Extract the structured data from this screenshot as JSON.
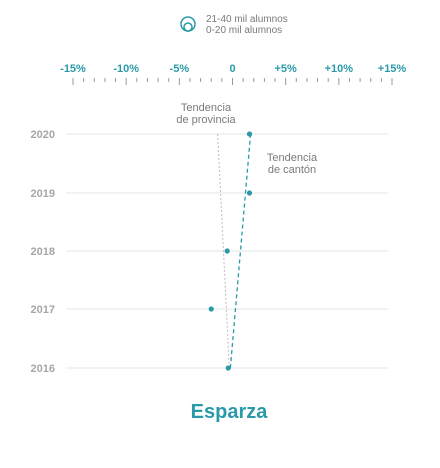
{
  "legend": {
    "size_large": "21-40 mil alumnos",
    "size_small": "0-20 mil alumnos"
  },
  "colors": {
    "accent": "#2a9aa8",
    "grid": "#e6e6e6",
    "year_text": "#a6a6a6",
    "annotation_text": "#7a7a7a",
    "province_line": "#bdbdbd"
  },
  "chart_data": {
    "type": "scatter",
    "title": "Esparza",
    "xlim": [
      -15,
      15
    ],
    "x_ticks": [
      -15,
      -10,
      -5,
      0,
      5,
      10,
      15
    ],
    "x_tick_labels": [
      "-15%",
      "-10%",
      "-5%",
      "0",
      "+5%",
      "+10%",
      "+15%"
    ],
    "years": [
      "2020",
      "2019",
      "2018",
      "2017",
      "2016"
    ],
    "points": [
      {
        "year": "2020",
        "x": 1.6
      },
      {
        "year": "2019",
        "x": 1.6
      },
      {
        "year": "2018",
        "x": -0.5
      },
      {
        "year": "2017",
        "x": -2.0
      },
      {
        "year": "2016",
        "x": -0.4
      }
    ],
    "canton_trend": {
      "label": "Tendencia\nde cantón",
      "x_start": -0.2,
      "x_end": 1.7
    },
    "province_trend": {
      "label": "Tendencia\nde provincia",
      "x_start": -1.4,
      "x_end": -0.3
    }
  }
}
